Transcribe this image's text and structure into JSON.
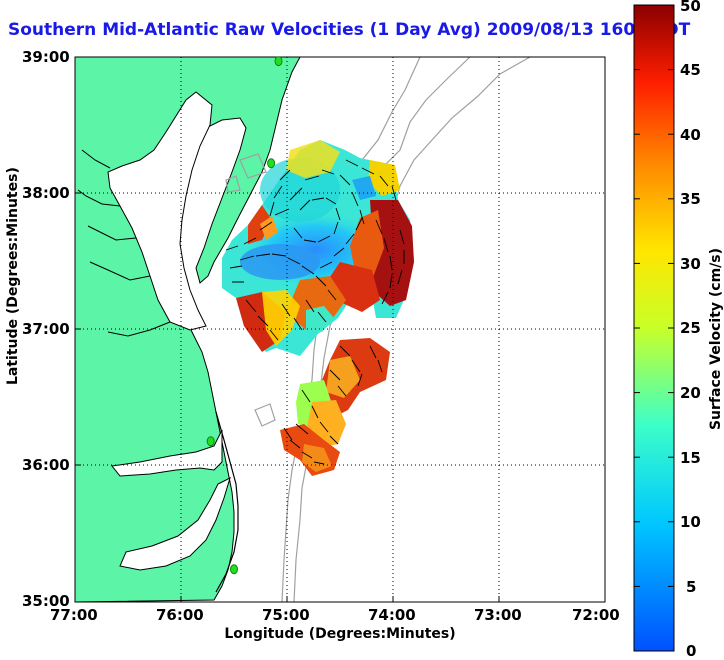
{
  "title": "Southern Mid-Atlantic Raw Velocities (1 Day Avg) 2009/08/13 1600 EDT",
  "xlabel": "Longitude (Degrees:Minutes)",
  "ylabel": "Latitude (Degrees:Minutes)",
  "colorbar_label": "Surface Velocity (cm/s)",
  "x_ticks": [
    "77:00",
    "76:00",
    "75:00",
    "74:00",
    "73:00",
    "72:00"
  ],
  "y_ticks": [
    "39:00",
    "38:00",
    "37:00",
    "36:00",
    "35:00"
  ],
  "cb_ticks": [
    "50",
    "45",
    "40",
    "35",
    "30",
    "25",
    "20",
    "15",
    "10",
    "5",
    "0"
  ],
  "colors": {
    "land": "#5cf5a8",
    "title": "#1a1ae6",
    "coast": "#000000",
    "bathymetry": "#999999"
  },
  "chart_data": {
    "type": "heatmap",
    "xlim": [
      -77,
      -72
    ],
    "ylim": [
      35,
      39
    ],
    "colorbar_range": [
      0,
      50
    ],
    "grid": true,
    "stations": [
      {
        "lon": -75.08,
        "lat": 38.97
      },
      {
        "lon": -75.15,
        "lat": 38.22
      },
      {
        "lon": -75.72,
        "lat": 36.18
      },
      {
        "lon": -75.5,
        "lat": 35.24
      }
    ],
    "velocity_regions": [
      {
        "lon": -74.75,
        "lat": 38.05,
        "speed": 14
      },
      {
        "lon": -74.95,
        "lat": 37.65,
        "speed": 6
      },
      {
        "lon": -75.25,
        "lat": 37.55,
        "speed": 10
      },
      {
        "lon": -74.3,
        "lat": 37.55,
        "speed": 45
      },
      {
        "lon": -74.25,
        "lat": 37.25,
        "speed": 40
      },
      {
        "lon": -75.15,
        "lat": 37.1,
        "speed": 24
      },
      {
        "lon": -74.85,
        "lat": 37.2,
        "speed": 35
      },
      {
        "lon": -75.3,
        "lat": 36.95,
        "speed": 42
      },
      {
        "lon": -74.55,
        "lat": 36.75,
        "speed": 30
      },
      {
        "lon": -74.7,
        "lat": 36.55,
        "speed": 32
      },
      {
        "lon": -74.8,
        "lat": 36.25,
        "speed": 38
      }
    ]
  }
}
